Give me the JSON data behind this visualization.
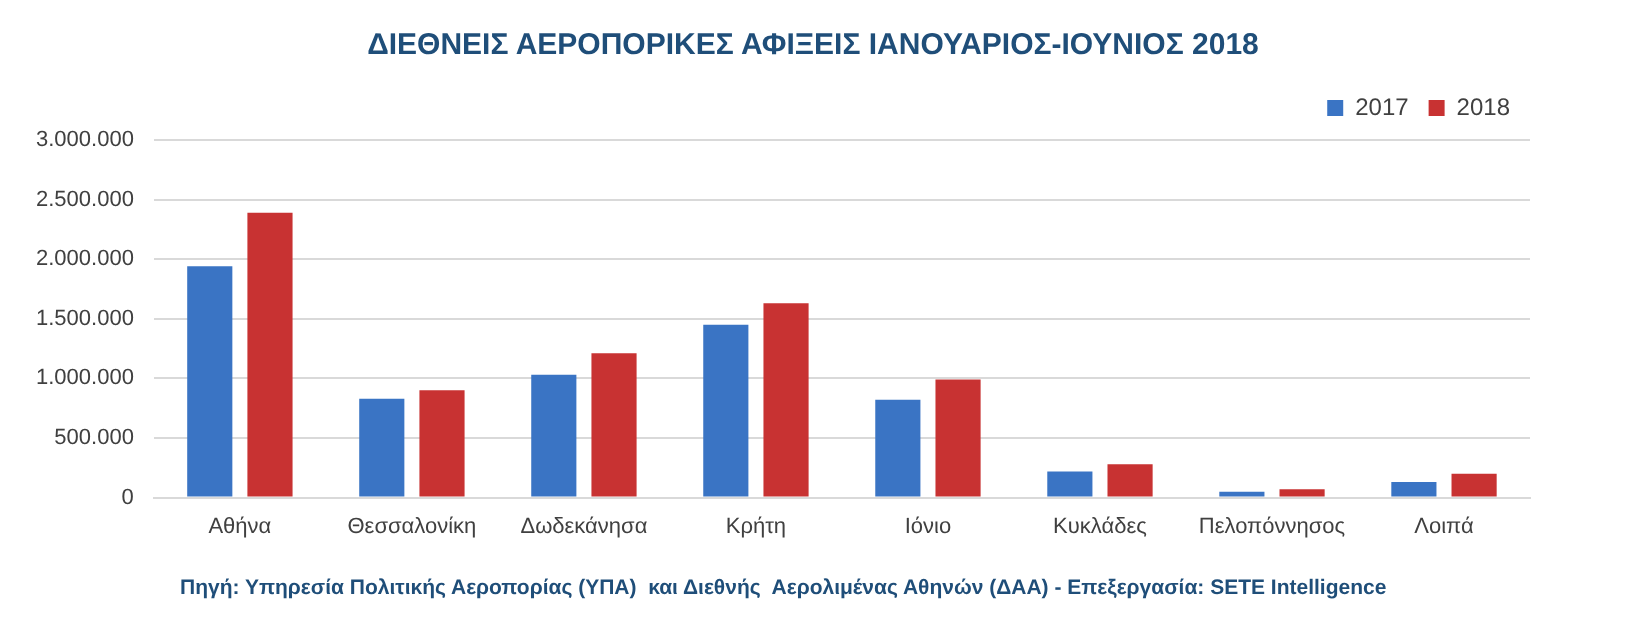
{
  "chart_data": {
    "type": "bar",
    "title": "ΔΙΕΘΝΕΙΣ ΑΕΡΟΠΟΡΙΚΕΣ ΑΦΙΞΕΙΣ ΙΑΝΟΥΑΡΙΟΣ-ΙΟΥΝΙΟΣ 2018",
    "categories": [
      "Αθήνα",
      "Θεσσαλονίκη",
      "Δωδεκάνησα",
      "Κρήτη",
      "Ιόνιο",
      "Κυκλάδες",
      "Πελοπόννησος",
      "Λοιπά"
    ],
    "series": [
      {
        "name": "2017",
        "color": "#3a74c4",
        "values": [
          1940000,
          830000,
          1030000,
          1450000,
          820000,
          220000,
          50000,
          130000
        ]
      },
      {
        "name": "2018",
        "color": "#c83232",
        "values": [
          2390000,
          900000,
          1210000,
          1630000,
          990000,
          280000,
          70000,
          200000
        ]
      }
    ],
    "ylim": [
      0,
      3000000
    ],
    "yticks": [
      0,
      {
        "value": 500000,
        "label": "500.000"
      },
      {
        "value": 1000000,
        "label": "1.000.000"
      },
      {
        "value": 1500000,
        "label": "1.500.000"
      },
      {
        "value": 2000000,
        "label": "2.000.000"
      },
      {
        "value": 2500000,
        "label": "2.500.000"
      },
      {
        "value": 3000000,
        "label": "3.000.000"
      }
    ],
    "grid": "y",
    "legend": "top right",
    "annotations": [
      "Πηγή: Υπηρεσία Πολιτικής Αεροπορίας (ΥΠΑ)  και Διεθνής  Αερολιμένας Αθηνών (ΔΑΑ) - Επεξεργασία: SETE Intelligence"
    ]
  }
}
